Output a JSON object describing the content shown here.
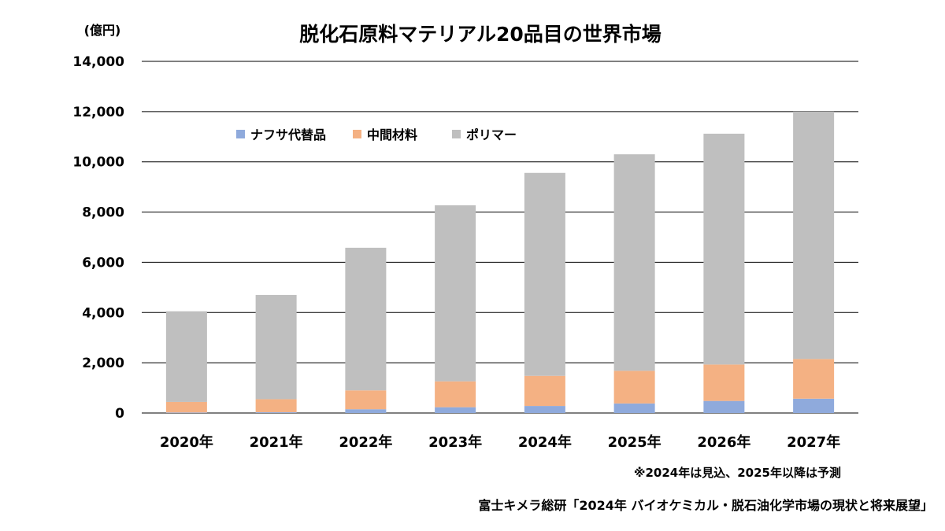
{
  "chart_data": {
    "type": "bar",
    "stacked": true,
    "title": "脱化石原料マテリアル20品目の世界市場",
    "ylabel": "(億円)",
    "xlabel": "",
    "categories": [
      "2020年",
      "2021年",
      "2022年",
      "2023年",
      "2024年",
      "2025年",
      "2026年",
      "2027年"
    ],
    "series": [
      {
        "name": "ナフサ代替品",
        "color": "#8faadc",
        "values": [
          20,
          30,
          150,
          230,
          280,
          380,
          480,
          570
        ]
      },
      {
        "name": "中間材料",
        "color": "#f4b183",
        "values": [
          420,
          520,
          750,
          1030,
          1200,
          1300,
          1450,
          1580
        ]
      },
      {
        "name": "ポリマー",
        "color": "#bfbfbf",
        "values": [
          3610,
          4150,
          5680,
          7010,
          8080,
          8620,
          9190,
          9850
        ]
      }
    ],
    "ylim": [
      0,
      14000
    ],
    "yticks": [
      "0",
      "2,000",
      "4,000",
      "6,000",
      "8,000",
      "10,000",
      "12,000",
      "14,000"
    ],
    "ytick_values": [
      0,
      2000,
      4000,
      6000,
      8000,
      10000,
      12000,
      14000
    ],
    "grid": true,
    "legend_position": "top-left inside plot"
  },
  "note": "※2024年は見込、2025年以降は予測",
  "source": "富士キメラ総研「2024年 バイオケミカル・脱石油化学市場の現状と将来展望」"
}
